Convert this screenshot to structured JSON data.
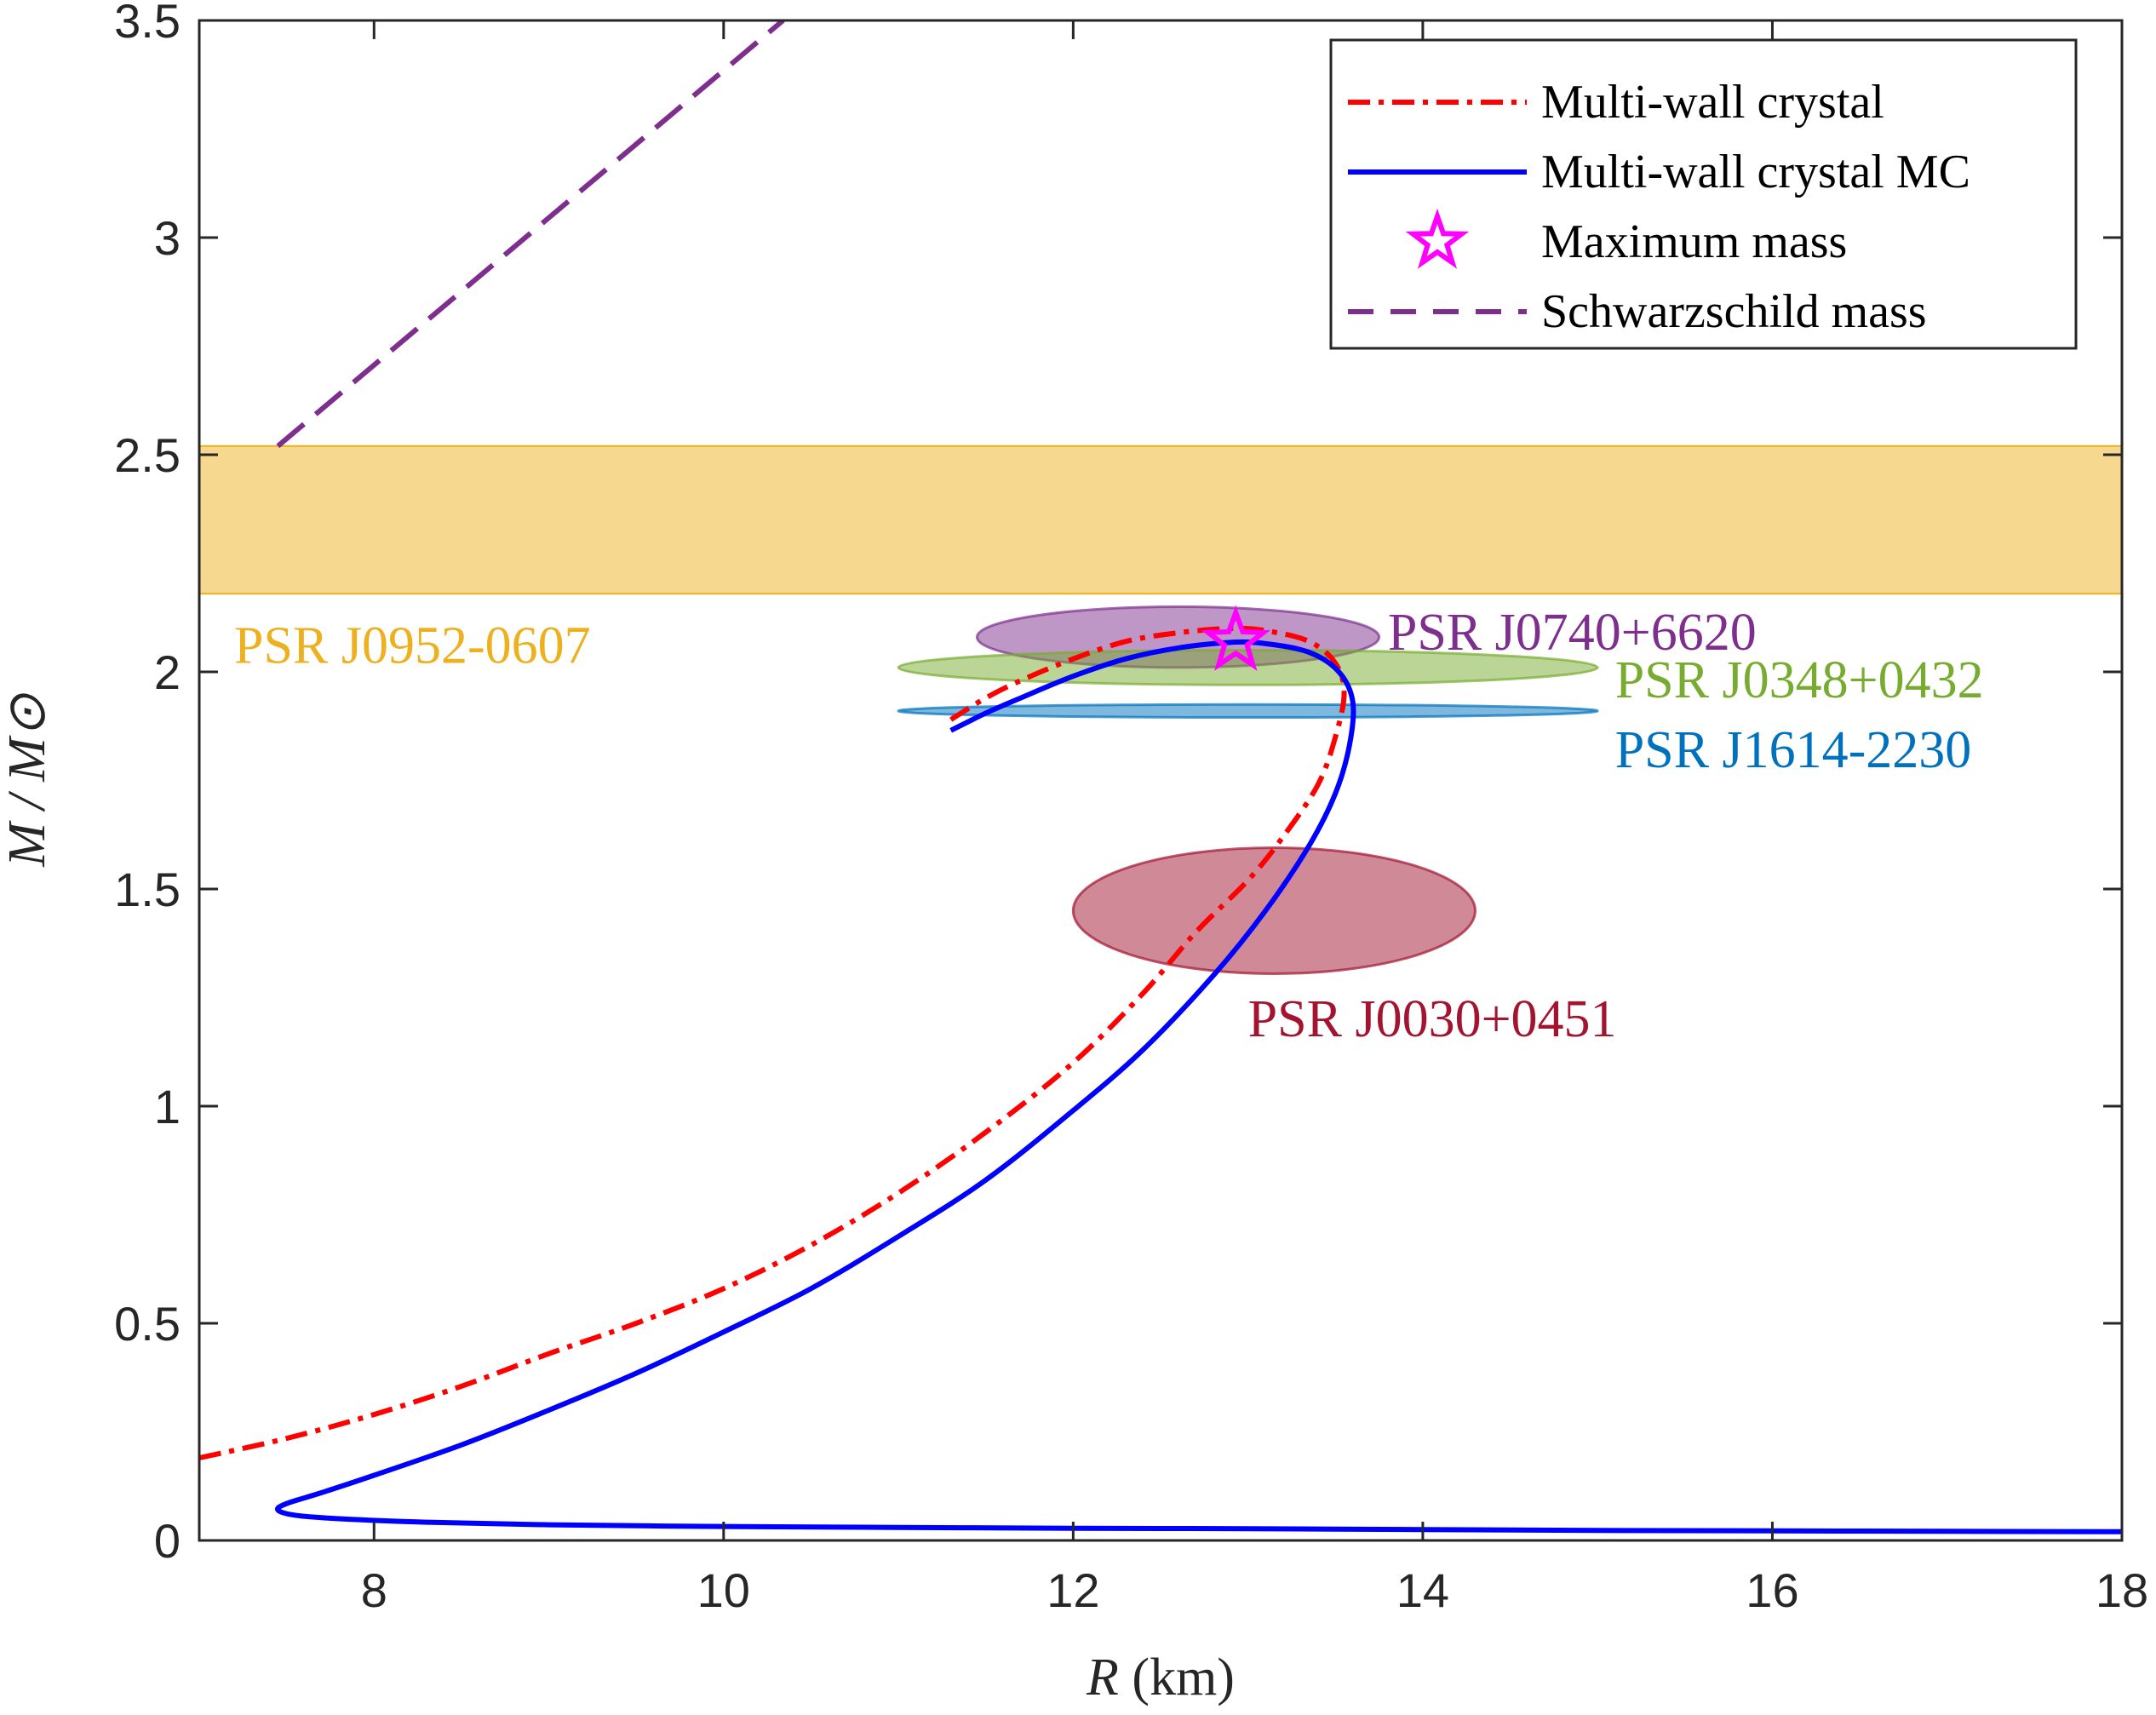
{
  "chart_data": {
    "type": "line",
    "title": "",
    "xlabel_var": "R",
    "xlabel_unit": " (km)",
    "ylabel": "M / M⊙",
    "xlim": [
      7,
      18
    ],
    "ylim": [
      0,
      3.5
    ],
    "xticks": [
      8,
      10,
      12,
      14,
      16,
      18
    ],
    "xtick_labels": [
      "8",
      "10",
      "12",
      "14",
      "16",
      "18"
    ],
    "yticks": [
      0,
      0.5,
      1,
      1.5,
      2,
      2.5,
      3,
      3.5
    ],
    "ytick_labels": [
      "0",
      "0.5",
      "1",
      "1.5",
      "2",
      "2.5",
      "3",
      "3.5"
    ],
    "grid": false,
    "legend_position": "top-right",
    "series": [
      {
        "name": "Multi-wall crystal",
        "style": "dash-dot",
        "color": "#ff0000",
        "points": [
          [
            7.0,
            0.19
          ],
          [
            7.5,
            0.235
          ],
          [
            8.0,
            0.29
          ],
          [
            8.5,
            0.355
          ],
          [
            9.0,
            0.43
          ],
          [
            9.5,
            0.5
          ],
          [
            10.0,
            0.58
          ],
          [
            10.5,
            0.68
          ],
          [
            11.0,
            0.8
          ],
          [
            11.5,
            0.94
          ],
          [
            12.0,
            1.1
          ],
          [
            12.4,
            1.26
          ],
          [
            12.7,
            1.4
          ],
          [
            13.0,
            1.52
          ],
          [
            13.2,
            1.62
          ],
          [
            13.4,
            1.74
          ],
          [
            13.5,
            1.85
          ],
          [
            13.55,
            1.95
          ],
          [
            13.5,
            2.02
          ],
          [
            13.35,
            2.07
          ],
          [
            13.1,
            2.095
          ],
          [
            12.9,
            2.1
          ],
          [
            12.6,
            2.09
          ],
          [
            12.3,
            2.07
          ],
          [
            12.0,
            2.03
          ],
          [
            11.7,
            1.98
          ],
          [
            11.5,
            1.94
          ],
          [
            11.3,
            1.89
          ]
        ]
      },
      {
        "name": "Multi-wall crystal MC",
        "style": "solid",
        "color": "#0000ff",
        "points": [
          [
            18.0,
            0.02
          ],
          [
            17.0,
            0.021
          ],
          [
            16.0,
            0.022
          ],
          [
            15.0,
            0.023
          ],
          [
            14.0,
            0.025
          ],
          [
            13.0,
            0.027
          ],
          [
            12.0,
            0.028
          ],
          [
            11.0,
            0.03
          ],
          [
            10.0,
            0.032
          ],
          [
            9.0,
            0.036
          ],
          [
            8.3,
            0.042
          ],
          [
            7.8,
            0.05
          ],
          [
            7.55,
            0.058
          ],
          [
            7.45,
            0.07
          ],
          [
            7.5,
            0.085
          ],
          [
            7.7,
            0.11
          ],
          [
            8.0,
            0.15
          ],
          [
            8.5,
            0.22
          ],
          [
            9.0,
            0.3
          ],
          [
            9.5,
            0.385
          ],
          [
            10.0,
            0.48
          ],
          [
            10.5,
            0.58
          ],
          [
            11.0,
            0.7
          ],
          [
            11.5,
            0.83
          ],
          [
            12.0,
            0.99
          ],
          [
            12.4,
            1.13
          ],
          [
            12.8,
            1.3
          ],
          [
            13.1,
            1.45
          ],
          [
            13.35,
            1.6
          ],
          [
            13.5,
            1.72
          ],
          [
            13.58,
            1.83
          ],
          [
            13.6,
            1.93
          ],
          [
            13.52,
            2.0
          ],
          [
            13.35,
            2.045
          ],
          [
            13.1,
            2.065
          ],
          [
            12.9,
            2.068
          ],
          [
            12.6,
            2.055
          ],
          [
            12.3,
            2.03
          ],
          [
            12.0,
            1.99
          ],
          [
            11.7,
            1.94
          ],
          [
            11.5,
            1.905
          ],
          [
            11.3,
            1.865
          ]
        ]
      },
      {
        "name": "Schwarzschild mass",
        "style": "dashed",
        "color": "#7e2f8e",
        "points": [
          [
            7.45,
            2.52
          ],
          [
            10.34,
            3.5
          ]
        ]
      }
    ],
    "markers": [
      {
        "name": "Maximum mass",
        "symbol": "star",
        "color": "#ff00ff",
        "x": 12.93,
        "y": 2.07
      }
    ],
    "bands": [
      {
        "name": "PSR J0952-0607",
        "y_range": [
          2.18,
          2.52
        ],
        "color": "#edb120",
        "opacity": 0.5
      }
    ],
    "ellipses": [
      {
        "name": "PSR J0740+6620",
        "cx": 12.6,
        "cy": 2.08,
        "rx": 1.15,
        "ry": 0.07,
        "color": "#7e2f8e",
        "opacity": 0.5
      },
      {
        "name": "PSR J0348+0432",
        "cx": 13.0,
        "cy": 2.01,
        "rx": 2.0,
        "ry": 0.04,
        "color": "#77ac30",
        "opacity": 0.5
      },
      {
        "name": "PSR J1614-2230",
        "cx": 13.0,
        "cy": 1.91,
        "rx": 2.0,
        "ry": 0.015,
        "color": "#0072bd",
        "opacity": 0.5
      },
      {
        "name": "PSR J0030+0451",
        "cx": 13.15,
        "cy": 1.45,
        "rx": 1.15,
        "ry": 0.145,
        "color": "#a2142f",
        "opacity": 0.5
      }
    ],
    "annotations": [
      {
        "text": "PSR J0952-0607",
        "x": 7.2,
        "y": 2.06,
        "color": "#edb120"
      },
      {
        "text": "PSR J0740+6620",
        "x": 13.8,
        "y": 2.09,
        "color": "#7e2f8e"
      },
      {
        "text": "PSR J0348+0432",
        "x": 15.1,
        "y": 1.98,
        "color": "#77ac30"
      },
      {
        "text": "PSR J1614-2230",
        "x": 15.1,
        "y": 1.82,
        "color": "#0072bd"
      },
      {
        "text": "PSR J0030+0451",
        "x": 13.0,
        "y": 1.2,
        "color": "#a2142f"
      }
    ],
    "legend": [
      {
        "label": "Multi-wall crystal",
        "style": "dash-dot",
        "color": "#ff0000"
      },
      {
        "label": "Multi-wall crystal MC",
        "style": "solid",
        "color": "#0000ff"
      },
      {
        "label": "Maximum mass",
        "style": "star",
        "color": "#ff00ff"
      },
      {
        "label": "Schwarzschild mass",
        "style": "dashed",
        "color": "#7e2f8e"
      }
    ]
  }
}
